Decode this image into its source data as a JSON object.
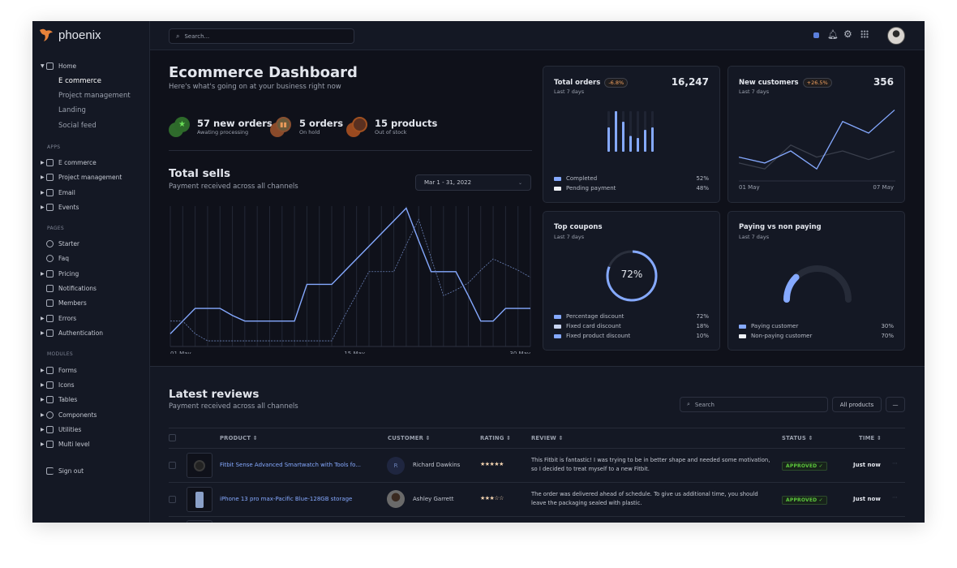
{
  "brand": {
    "name": "phoenix"
  },
  "sidebar": {
    "home": {
      "label": "Home",
      "children": [
        "E commerce",
        "Project management",
        "Landing",
        "Social feed"
      ]
    },
    "sections": [
      {
        "title": "APPS",
        "items": [
          {
            "label": "E commerce",
            "icon": "cart-icon"
          },
          {
            "label": "Project management",
            "icon": "clipboard-icon"
          },
          {
            "label": "Email",
            "icon": "mail-icon"
          },
          {
            "label": "Events",
            "icon": "clipboard-icon"
          }
        ]
      },
      {
        "title": "PAGES",
        "items": [
          {
            "label": "Starter",
            "icon": "compass-icon"
          },
          {
            "label": "Faq",
            "icon": "help-icon"
          },
          {
            "label": "Pricing",
            "icon": "tag-icon"
          },
          {
            "label": "Notifications",
            "icon": "bell-icon"
          },
          {
            "label": "Members",
            "icon": "users-icon"
          },
          {
            "label": "Errors",
            "icon": "alert-icon"
          },
          {
            "label": "Authentication",
            "icon": "lock-icon"
          }
        ]
      },
      {
        "title": "MODULES",
        "items": [
          {
            "label": "Forms",
            "icon": "file-icon"
          },
          {
            "label": "Icons",
            "icon": "grid-icon"
          },
          {
            "label": "Tables",
            "icon": "columns-icon"
          },
          {
            "label": "Components",
            "icon": "package-icon"
          },
          {
            "label": "Utilities",
            "icon": "tool-icon"
          },
          {
            "label": "Multi level",
            "icon": "layers-icon"
          }
        ]
      }
    ],
    "signout": "Sign out"
  },
  "topbar": {
    "search_placeholder": "Search..."
  },
  "dashboard": {
    "title": "Ecommerce Dashboard",
    "subtitle": "Here's what's going on at your business right now",
    "stats": [
      {
        "value": "57 new orders",
        "label": "Awating processing",
        "color": "#3f8f3a"
      },
      {
        "value": "5 orders",
        "label": "On hold",
        "color": "#c0682c"
      },
      {
        "value": "15 products",
        "label": "Out of stock",
        "color": "#c0682c"
      }
    ]
  },
  "total_sells": {
    "title": "Total sells",
    "subtitle": "Payment received across all channels",
    "date_range": "Mar 1 - 31, 2022"
  },
  "chart_data": [
    {
      "type": "line",
      "x_ticks": [
        "01 May",
        "15 May",
        "30 May"
      ],
      "x_days": 30,
      "grid": "vertical",
      "series": [
        {
          "style": "solid",
          "color": "#85a9ff",
          "values": [
            9,
            18,
            27,
            27,
            27,
            22,
            18,
            18,
            18,
            18,
            18,
            44,
            44,
            44,
            53,
            62,
            71,
            80,
            89,
            98,
            75,
            53,
            53,
            53,
            36,
            18,
            18,
            27,
            27,
            27
          ]
        },
        {
          "style": "dashed",
          "color": "#6b82b8",
          "values": [
            18,
            18,
            9,
            4,
            4,
            4,
            4,
            4,
            4,
            4,
            4,
            4,
            4,
            4,
            21,
            37,
            53,
            53,
            53,
            72,
            90,
            63,
            36,
            40,
            45,
            54,
            62,
            58,
            54,
            49
          ]
        }
      ]
    },
    {
      "type": "bar",
      "title": "Total orders",
      "values": [
        0.6,
        1.0,
        0.74,
        0.39,
        0.34,
        0.54,
        0.6
      ]
    },
    {
      "type": "line",
      "title": "New customers",
      "x_ticks": [
        "01 May",
        "07 May"
      ],
      "series": [
        {
          "color": "#85a9ff",
          "values": [
            89,
            67,
            112,
            45,
            222,
            179,
            265
          ]
        },
        {
          "color": "#3a3f4c",
          "values": [
            67,
            45,
            134,
            89,
            112,
            80,
            111
          ]
        }
      ]
    },
    {
      "type": "pie",
      "title": "Top coupons",
      "values": [
        72,
        18,
        10
      ]
    },
    {
      "type": "pie",
      "title": "Paying vs non paying",
      "values": [
        30,
        70
      ]
    }
  ],
  "cards": {
    "orders": {
      "title": "Total orders",
      "badge": "-6.8%",
      "value": "16,247",
      "period": "Last 7 days",
      "legend": [
        {
          "label": "Completed",
          "value": "52%",
          "color": "#85a9ff"
        },
        {
          "label": "Pending payment",
          "value": "48%",
          "color": "#eef0f4"
        }
      ]
    },
    "customers": {
      "title": "New customers",
      "badge": "+26.5%",
      "value": "356",
      "period": "Last 7 days",
      "x_start": "01 May",
      "x_end": "07 May"
    },
    "coupons": {
      "title": "Top coupons",
      "period": "Last 7 days",
      "center": "72%",
      "legend": [
        {
          "label": "Percentage discount",
          "value": "72%",
          "color": "#85a9ff"
        },
        {
          "label": "Fixed card discount",
          "value": "18%",
          "color": "#c8d4f0"
        },
        {
          "label": "Fixed product discount",
          "value": "10%",
          "color": "#85a9ff"
        }
      ]
    },
    "paying": {
      "title": "Paying vs non paying",
      "period": "Last 7 days",
      "legend": [
        {
          "label": "Paying customer",
          "value": "30%",
          "color": "#85a9ff"
        },
        {
          "label": "Non-paying customer",
          "value": "70%",
          "color": "#eef0f4"
        }
      ]
    }
  },
  "reviews": {
    "title": "Latest reviews",
    "subtitle": "Payment received across all channels",
    "search_placeholder": "Search",
    "filter": "All products",
    "more": "—",
    "columns": [
      "PRODUCT",
      "CUSTOMER",
      "RATING",
      "REVIEW",
      "STATUS",
      "TIME"
    ],
    "rows": [
      {
        "product": "Fitbit Sense Advanced Smartwatch with Tools fo...",
        "avatar_initial": "R",
        "customer": "Richard Dawkins",
        "rating": "★★★★★",
        "review_1": "This Fitbit is fantastic! I was trying to be in better shape and needed some motivation,",
        "review_2": "so I decided to treat myself to a new Fitbit.",
        "status": "APPROVED ✓",
        "time": "Just now"
      },
      {
        "product": "iPhone 13 pro max-Pacific Blue-128GB storage",
        "avatar_initial": "",
        "customer": "Ashley Garrett",
        "rating": "★★★☆☆",
        "review_1": "The order was delivered ahead of schedule. To give us additional time, you should",
        "review_2": "leave the packaging sealed with plastic.",
        "status": "APPROVED ✓",
        "time": "Just now"
      }
    ]
  }
}
